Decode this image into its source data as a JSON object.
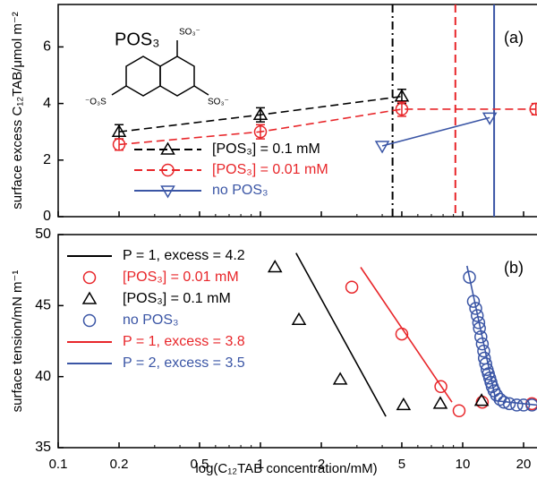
{
  "chart_data": [
    {
      "type": "line",
      "panel_label": "(a)",
      "ylabel": "surface excess C₁₂TAB/μmol m⁻²",
      "xscale": "log",
      "xlim": [
        0.1,
        23.3
      ],
      "xticks": [
        0.1,
        0.2,
        0.5,
        1,
        2,
        5,
        10,
        20
      ],
      "xtick_labels": false,
      "ylim": [
        0,
        7.5
      ],
      "yticks": [
        0,
        2,
        4,
        6
      ],
      "molecule": {
        "name": "POS₃",
        "groups": [
          "SO₃⁻",
          "SO₃⁻",
          "⁻O₃S"
        ]
      },
      "series": [
        {
          "name": "[POS₃] = 0.1 mM",
          "color": "#000000",
          "marker": "triangle-up",
          "dash": "dash",
          "x": [
            0.2,
            1,
            5
          ],
          "values": [
            3.0,
            3.6,
            4.25
          ],
          "errors": [
            0.25,
            0.25,
            0.25
          ]
        },
        {
          "name": "[POS₃] = 0.01 mM",
          "color": "#e8262a",
          "marker": "circle",
          "dash": "dash",
          "x": [
            0.2,
            1,
            5,
            23
          ],
          "values": [
            2.55,
            3.0,
            3.8,
            3.8
          ],
          "errors": [
            0.2,
            0.25,
            0.25,
            0.2
          ]
        },
        {
          "name": "no POS₃",
          "color": "#3a55a5",
          "marker": "triangle-down",
          "dash": "solid",
          "x": [
            4.0,
            13.6
          ],
          "values": [
            2.5,
            3.5
          ]
        }
      ],
      "vlines": [
        {
          "x": 4.5,
          "color": "#000000",
          "dash": "dashdot"
        },
        {
          "x": 9.2,
          "color": "#e8262a",
          "dash": "dash"
        },
        {
          "x": 14.3,
          "color": "#3a55a5",
          "dash": "solid"
        }
      ]
    },
    {
      "type": "scatter",
      "panel_label": "(b)",
      "ylabel": "surface tension/mN m⁻¹",
      "xlabel": "log(C₁₂TAB concentration/mM)",
      "xscale": "log",
      "xlim": [
        0.1,
        23.3
      ],
      "xticks": [
        0.1,
        0.2,
        0.5,
        1,
        2,
        5,
        10,
        20
      ],
      "xtick_labels": true,
      "ylim": [
        35,
        50
      ],
      "yticks": [
        35,
        40,
        45,
        50
      ],
      "series": [
        {
          "name": "P = 1, excess = 4.2",
          "color": "#000000",
          "marker": "none",
          "dash": "solid",
          "x": [
            1.5,
            4.17
          ],
          "values": [
            48.7,
            37.2
          ]
        },
        {
          "name": "[POS₃] = 0.01 mM",
          "color": "#e8262a",
          "marker": "circle",
          "dash": "none",
          "x": [
            2.83,
            5.0,
            7.8,
            9.6,
            12.5,
            22.0
          ],
          "values": [
            46.3,
            43.0,
            39.3,
            37.6,
            38.2,
            38.1
          ]
        },
        {
          "name": "[POS₃] = 0.1 mM",
          "color": "#000000",
          "marker": "triangle-up",
          "dash": "none",
          "x": [
            1.18,
            1.55,
            2.48,
            5.1,
            7.75,
            12.4
          ],
          "values": [
            47.7,
            44.0,
            39.8,
            38.0,
            38.1,
            38.3
          ]
        },
        {
          "name": "no POS₃",
          "color": "#3a55a5",
          "marker": "circle",
          "dash": "none",
          "x": [
            10.8,
            11.3,
            11.6,
            11.8,
            12.0,
            12.1,
            12.3,
            12.5,
            12.7,
            12.8,
            13.0,
            13.2,
            13.4,
            13.6,
            13.8,
            14.0,
            14.3,
            14.7,
            15.3,
            16.0,
            17.0,
            18.5,
            20.0,
            22.0
          ],
          "values": [
            47.0,
            45.3,
            44.8,
            44.3,
            43.8,
            43.4,
            42.8,
            42.3,
            41.8,
            41.3,
            40.9,
            40.5,
            40.2,
            39.9,
            39.6,
            39.3,
            39.0,
            38.7,
            38.4,
            38.2,
            38.1,
            38.0,
            38.0,
            38.0
          ]
        },
        {
          "name": "P = 1, excess = 3.8",
          "color": "#e8262a",
          "marker": "none",
          "dash": "solid",
          "x": [
            3.13,
            8.85
          ],
          "values": [
            47.7,
            38.2
          ]
        },
        {
          "name": "P = 2, excess = 3.5",
          "color": "#3a55a5",
          "marker": "none",
          "dash": "solid",
          "x": [
            10.5,
            14.6,
            23.3
          ],
          "values": [
            47.8,
            38.3,
            38.0
          ]
        }
      ]
    }
  ]
}
